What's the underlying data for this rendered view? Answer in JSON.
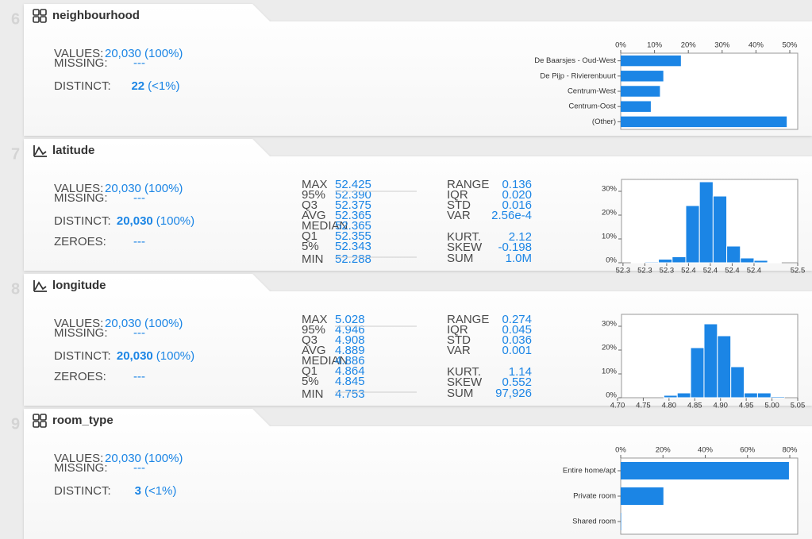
{
  "cards": [
    {
      "number": "6",
      "name": "neighbourhood",
      "stats": [
        {
          "label": "VALUES:",
          "value": "20,030 (100%)"
        },
        {
          "label": "MISSING:",
          "value": "---"
        },
        {
          "label": "DISTINCT:",
          "value": "22",
          "pct": "(<1%)"
        }
      ]
    },
    {
      "number": "7",
      "name": "latitude",
      "stats": [
        {
          "label": "VALUES:",
          "value": "20,030 (100%)"
        },
        {
          "label": "MISSING:",
          "value": "---"
        },
        {
          "label": "DISTINCT:",
          "value": "20,030",
          "pct": "(100%)"
        },
        {
          "label": "ZEROES:",
          "value": "---"
        }
      ],
      "quantiles": [
        {
          "label": "MAX",
          "value": "52.425"
        },
        {
          "label": "95%",
          "value": "52.390"
        },
        {
          "label": "Q3",
          "value": "52.375"
        },
        {
          "label": "AVG",
          "value": "52.365"
        },
        {
          "label": "MEDIAN",
          "value": "52.365"
        },
        {
          "label": "Q1",
          "value": "52.355"
        },
        {
          "label": "5%",
          "value": "52.343"
        },
        {
          "label": "MIN",
          "value": "52.288"
        }
      ],
      "moments": [
        {
          "label": "RANGE",
          "value": "0.136"
        },
        {
          "label": "IQR",
          "value": "0.020"
        },
        {
          "label": "STD",
          "value": "0.016"
        },
        {
          "label": "VAR",
          "value": "2.56e-4"
        },
        {
          "label": "KURT.",
          "value": "2.12"
        },
        {
          "label": "SKEW",
          "value": "-0.198"
        },
        {
          "label": "SUM",
          "value": "1.0M"
        }
      ]
    },
    {
      "number": "8",
      "name": "longitude",
      "stats": [
        {
          "label": "VALUES:",
          "value": "20,030 (100%)"
        },
        {
          "label": "MISSING:",
          "value": "---"
        },
        {
          "label": "DISTINCT:",
          "value": "20,030",
          "pct": "(100%)"
        },
        {
          "label": "ZEROES:",
          "value": "---"
        }
      ],
      "quantiles": [
        {
          "label": "MAX",
          "value": "5.028"
        },
        {
          "label": "95%",
          "value": "4.946"
        },
        {
          "label": "Q3",
          "value": "4.908"
        },
        {
          "label": "AVG",
          "value": "4.889"
        },
        {
          "label": "MEDIAN",
          "value": "4.886"
        },
        {
          "label": "Q1",
          "value": "4.864"
        },
        {
          "label": "5%",
          "value": "4.845"
        },
        {
          "label": "MIN",
          "value": "4.753"
        }
      ],
      "moments": [
        {
          "label": "RANGE",
          "value": "0.274"
        },
        {
          "label": "IQR",
          "value": "0.045"
        },
        {
          "label": "STD",
          "value": "0.036"
        },
        {
          "label": "VAR",
          "value": "0.001"
        },
        {
          "label": "KURT.",
          "value": "1.14"
        },
        {
          "label": "SKEW",
          "value": "0.552"
        },
        {
          "label": "SUM",
          "value": "97,926"
        }
      ]
    },
    {
      "number": "9",
      "name": "room_type",
      "stats": [
        {
          "label": "VALUES:",
          "value": "20,030 (100%)"
        },
        {
          "label": "MISSING:",
          "value": "---"
        },
        {
          "label": "DISTINCT:",
          "value": "3",
          "pct": "(<1%)"
        }
      ]
    }
  ],
  "chart_data": [
    {
      "type": "barh",
      "categories": [
        "De Baarsjes - Oud-West",
        "De Pijp - Rivierenbuurt",
        "Centrum-West",
        "Centrum-Oost",
        "(Other)"
      ],
      "values": [
        17.8,
        12.6,
        11.6,
        8.9,
        49.1
      ],
      "color": "#1b85e5",
      "xlim": [
        0,
        50
      ],
      "xticks": [
        {
          "value": 0,
          "label": "0%"
        },
        {
          "value": 10,
          "label": "10%"
        },
        {
          "value": 20,
          "label": "20%"
        },
        {
          "value": 30,
          "label": "30%"
        },
        {
          "value": 40,
          "label": "40%"
        },
        {
          "value": 50,
          "label": "50%"
        }
      ]
    },
    {
      "type": "histogram",
      "bins": [
        52.2975,
        52.31,
        52.3225,
        52.335,
        52.3475,
        52.36,
        52.3725,
        52.385,
        52.3975,
        52.41,
        52.4225,
        52.435
      ],
      "values": [
        0.2,
        0.4,
        1.5,
        2.5,
        24,
        34,
        28,
        7,
        2,
        1,
        0.3
      ],
      "color": "#1b85e5",
      "xlim": [
        52.285,
        52.45
      ],
      "xticks": [
        {
          "value": 52.29,
          "label": "52.3"
        },
        {
          "value": 52.31,
          "label": "52.3"
        },
        {
          "value": 52.33,
          "label": "52.3"
        },
        {
          "value": 52.35,
          "label": "52.4"
        },
        {
          "value": 52.37,
          "label": "52.4"
        },
        {
          "value": 52.39,
          "label": "52.4"
        },
        {
          "value": 52.41,
          "label": "52.4"
        },
        {
          "value": 52.45,
          "label": "52.5"
        }
      ],
      "ylim": [
        0,
        35
      ],
      "yticks": [
        {
          "value": 0,
          "label": "0%"
        },
        {
          "value": 10,
          "label": "10%"
        },
        {
          "value": 20,
          "label": "20%"
        },
        {
          "value": 30,
          "label": "30%"
        }
      ]
    },
    {
      "type": "histogram",
      "bins": [
        4.79,
        4.816,
        4.842,
        4.868,
        4.894,
        4.92,
        4.946,
        4.972,
        4.998,
        5.024
      ],
      "values": [
        1,
        2,
        21,
        31,
        26,
        13,
        2,
        2,
        0.5
      ],
      "color": "#1b85e5",
      "xlim": [
        4.7,
        5.05
      ],
      "xticks": [
        {
          "value": 4.7,
          "label": "4.70"
        },
        {
          "value": 4.75,
          "label": "4.75"
        },
        {
          "value": 4.8,
          "label": "4.80"
        },
        {
          "value": 4.85,
          "label": "4.85"
        },
        {
          "value": 4.9,
          "label": "4.90"
        },
        {
          "value": 4.95,
          "label": "4.95"
        },
        {
          "value": 5.0,
          "label": "5.00"
        },
        {
          "value": 5.05,
          "label": "5.05"
        }
      ],
      "ylim": [
        0,
        35
      ],
      "yticks": [
        {
          "value": 0,
          "label": "0%"
        },
        {
          "value": 10,
          "label": "10%"
        },
        {
          "value": 20,
          "label": "20%"
        },
        {
          "value": 30,
          "label": "30%"
        }
      ]
    },
    {
      "type": "barh",
      "categories": [
        "Entire home/apt",
        "Private room",
        "Shared room"
      ],
      "values": [
        79.6,
        20.2,
        0.2
      ],
      "color": "#1b85e5",
      "xlim": [
        0,
        80
      ],
      "xticks": [
        {
          "value": 0,
          "label": "0%"
        },
        {
          "value": 20,
          "label": "20%"
        },
        {
          "value": 40,
          "label": "40%"
        },
        {
          "value": 60,
          "label": "60%"
        },
        {
          "value": 80,
          "label": "80%"
        }
      ]
    }
  ]
}
